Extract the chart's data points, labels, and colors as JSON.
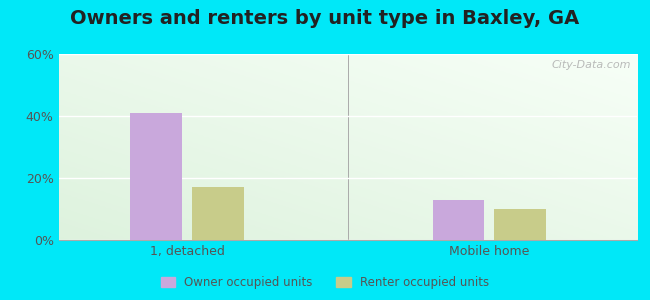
{
  "title": "Owners and renters by unit type in Baxley, GA",
  "categories": [
    "1, detached",
    "Mobile home"
  ],
  "owner_values": [
    41,
    13
  ],
  "renter_values": [
    17,
    10
  ],
  "owner_color": "#c9a8dc",
  "renter_color": "#c8cc8a",
  "ylim": [
    0,
    60
  ],
  "yticks": [
    0,
    20,
    40,
    60
  ],
  "ytick_labels": [
    "0%",
    "20%",
    "40%",
    "60%"
  ],
  "bar_width": 0.08,
  "group_positions": [
    0.25,
    0.72
  ],
  "xlim": [
    0.05,
    0.95
  ],
  "background_color": "#e8f5e2",
  "outer_background": "#00e8f8",
  "title_fontsize": 14,
  "legend_labels": [
    "Owner occupied units",
    "Renter occupied units"
  ],
  "watermark": "City-Data.com"
}
